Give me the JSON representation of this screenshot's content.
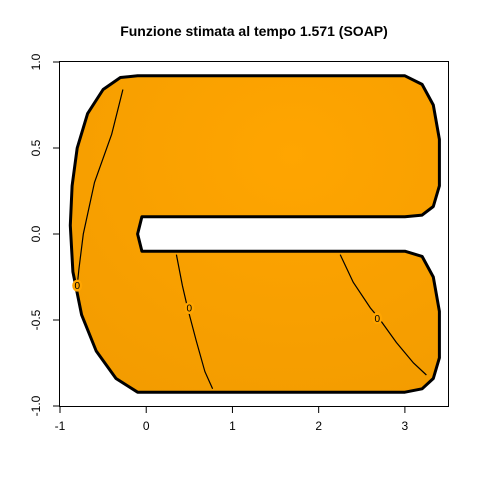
{
  "chart_data": {
    "type": "heatmap",
    "title": "Funzione stimata al tempo 1.571 (SOAP)",
    "xlabel": "",
    "ylabel": "",
    "xlim": [
      -1,
      3.5
    ],
    "ylim": [
      -1,
      1
    ],
    "x_ticks": [
      -1,
      0,
      1,
      2,
      3
    ],
    "y_ticks": [
      -1,
      -0.5,
      0,
      0.5,
      1
    ],
    "x_tick_labels": [
      "-1",
      "0",
      "1",
      "2",
      "3"
    ],
    "y_tick_labels": [
      "-1.0",
      "-0.5",
      "0.0",
      "0.5",
      "1.0"
    ],
    "grid": false,
    "fill_colors": {
      "light": "#ffa500",
      "dark": "#f39c00"
    },
    "boundary_color": "#000000",
    "domain_boundary": [
      [
        -0.1,
        0.92
      ],
      [
        3.0,
        0.92
      ],
      [
        3.2,
        0.87
      ],
      [
        3.33,
        0.75
      ],
      [
        3.4,
        0.55
      ],
      [
        3.4,
        0.28
      ],
      [
        3.33,
        0.16
      ],
      [
        3.2,
        0.11
      ],
      [
        3.0,
        0.1
      ],
      [
        -0.05,
        0.1
      ],
      [
        -0.1,
        0.0
      ],
      [
        -0.05,
        -0.1
      ],
      [
        3.0,
        -0.1
      ],
      [
        3.2,
        -0.13
      ],
      [
        3.33,
        -0.25
      ],
      [
        3.4,
        -0.45
      ],
      [
        3.4,
        -0.72
      ],
      [
        3.33,
        -0.84
      ],
      [
        3.2,
        -0.9
      ],
      [
        3.0,
        -0.92
      ],
      [
        -0.1,
        -0.92
      ],
      [
        -0.35,
        -0.84
      ],
      [
        -0.58,
        -0.68
      ],
      [
        -0.75,
        -0.47
      ],
      [
        -0.85,
        -0.22
      ],
      [
        -0.88,
        0.05
      ],
      [
        -0.86,
        0.28
      ],
      [
        -0.8,
        0.5
      ],
      [
        -0.68,
        0.7
      ],
      [
        -0.5,
        0.84
      ],
      [
        -0.3,
        0.91
      ],
      [
        -0.1,
        0.92
      ]
    ],
    "contours": [
      {
        "level": "0",
        "points": [
          [
            -0.27,
            0.84
          ],
          [
            -0.4,
            0.58
          ],
          [
            -0.6,
            0.3
          ],
          [
            -0.73,
            0.0
          ],
          [
            -0.78,
            -0.2
          ],
          [
            -0.8,
            -0.3
          ]
        ],
        "label_at": [
          -0.8,
          -0.3
        ]
      },
      {
        "level": "0",
        "points": [
          [
            0.35,
            -0.12
          ],
          [
            0.42,
            -0.3
          ],
          [
            0.48,
            -0.43
          ],
          [
            0.58,
            -0.62
          ],
          [
            0.68,
            -0.8
          ],
          [
            0.77,
            -0.9
          ]
        ],
        "label_at": [
          0.5,
          -0.43
        ]
      },
      {
        "level": "0",
        "points": [
          [
            2.25,
            -0.12
          ],
          [
            2.4,
            -0.28
          ],
          [
            2.6,
            -0.43
          ],
          [
            2.7,
            -0.49
          ],
          [
            2.9,
            -0.63
          ],
          [
            3.1,
            -0.75
          ],
          [
            3.25,
            -0.82
          ]
        ],
        "label_at": [
          2.68,
          -0.49
        ]
      }
    ]
  }
}
